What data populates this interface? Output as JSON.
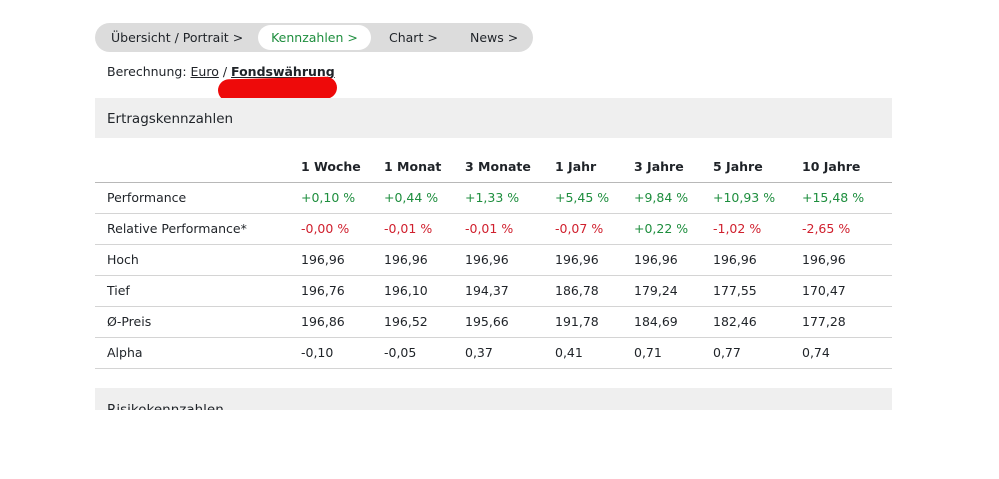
{
  "tabs": [
    {
      "label": "Übersicht / Portrait",
      "chevron": ">"
    },
    {
      "label": "Kennzahlen",
      "chevron": ">",
      "active": true
    },
    {
      "label": "Chart",
      "chevron": ">"
    },
    {
      "label": "News",
      "chevron": ">"
    }
  ],
  "calc": {
    "label": "Berechnung:",
    "option_euro": "Euro",
    "separator": "/",
    "option_fund": "Fondswährung"
  },
  "sections": {
    "ertrag_title": "Ertragskennzahlen",
    "risiko_title": "Risikokennzahlen"
  },
  "table": {
    "headers": [
      "",
      "1 Woche",
      "1 Monat",
      "3 Monate",
      "1 Jahr",
      "3 Jahre",
      "5 Jahre",
      "10 Jahre"
    ],
    "rows": [
      {
        "label": "Performance",
        "values": [
          "+0,10 %",
          "+0,44 %",
          "+1,33 %",
          "+5,45 %",
          "+9,84 %",
          "+10,93 %",
          "+15,48 %"
        ]
      },
      {
        "label": "Relative Performance*",
        "values": [
          "-0,00 %",
          "-0,01 %",
          "-0,01 %",
          "-0,07 %",
          "+0,22 %",
          "-1,02 %",
          "-2,65 %"
        ]
      },
      {
        "label": "Hoch",
        "values": [
          "196,96",
          "196,96",
          "196,96",
          "196,96",
          "196,96",
          "196,96",
          "196,96"
        ]
      },
      {
        "label": "Tief",
        "values": [
          "196,76",
          "196,10",
          "194,37",
          "186,78",
          "179,24",
          "177,55",
          "170,47"
        ]
      },
      {
        "label": "Ø-Preis",
        "values": [
          "196,86",
          "196,52",
          "195,66",
          "191,78",
          "184,69",
          "182,46",
          "177,28"
        ]
      },
      {
        "label": "Alpha",
        "values": [
          "-0,10",
          "-0,05",
          "0,37",
          "0,41",
          "0,71",
          "0,77",
          "0,74"
        ]
      }
    ]
  },
  "colors": {
    "positive": "#1e8e3e",
    "negative": "#d0202e",
    "redaction": "#ee0a0a"
  }
}
